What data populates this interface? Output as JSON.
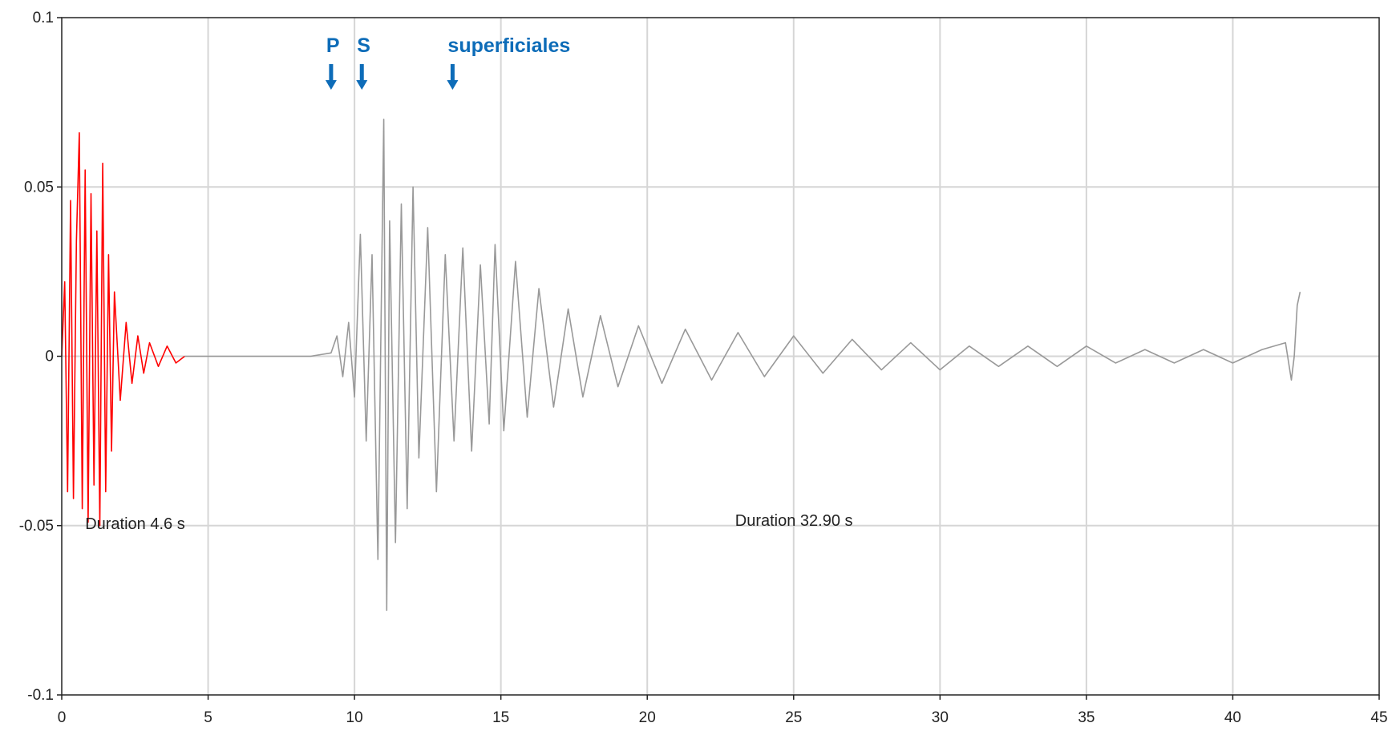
{
  "chart_data": {
    "type": "line",
    "title": "",
    "xlabel": "",
    "ylabel": "",
    "xlim": [
      0,
      45
    ],
    "ylim": [
      -0.1,
      0.1
    ],
    "x_ticks": [
      "0",
      "5",
      "10",
      "15",
      "20",
      "25",
      "30",
      "35",
      "40",
      "45"
    ],
    "y_ticks": [
      "0.1",
      "0.05",
      "0",
      "-0.05",
      "-0.1"
    ],
    "grid": true,
    "series": [
      {
        "color": "#ff0000",
        "x": [
          0.0,
          0.1,
          0.2,
          0.3,
          0.4,
          0.5,
          0.6,
          0.7,
          0.8,
          0.9,
          1.0,
          1.1,
          1.2,
          1.3,
          1.4,
          1.5,
          1.6,
          1.7,
          1.8,
          2.0,
          2.2,
          2.4,
          2.6,
          2.8,
          3.0,
          3.3,
          3.6,
          3.9,
          4.2
        ],
        "y": [
          0.0,
          0.022,
          -0.04,
          0.046,
          -0.042,
          0.034,
          0.066,
          -0.045,
          0.055,
          -0.049,
          0.048,
          -0.038,
          0.037,
          -0.05,
          0.057,
          -0.04,
          0.03,
          -0.028,
          0.019,
          -0.013,
          0.01,
          -0.008,
          0.006,
          -0.005,
          0.004,
          -0.003,
          0.003,
          -0.002,
          0.0
        ]
      },
      {
        "color": "#999999",
        "x": [
          4.2,
          6.8,
          8.5,
          9.2,
          9.4,
          9.6,
          9.8,
          10.0,
          10.2,
          10.4,
          10.6,
          10.8,
          11.0,
          11.1,
          11.2,
          11.4,
          11.6,
          11.8,
          12.0,
          12.2,
          12.5,
          12.8,
          13.1,
          13.4,
          13.7,
          14.0,
          14.3,
          14.6,
          14.8,
          15.1,
          15.5,
          15.9,
          16.3,
          16.8,
          17.3,
          17.8,
          18.4,
          19.0,
          19.7,
          20.5,
          21.3,
          22.2,
          23.1,
          24.0,
          25.0,
          26.0,
          27.0,
          28.0,
          29.0,
          30.0,
          31.0,
          32.0,
          33.0,
          34.0,
          35.0,
          36.0,
          37.0,
          38.0,
          39.0,
          40.0,
          41.0,
          41.8,
          42.0,
          42.1,
          42.2,
          42.3
        ],
        "y": [
          0.0,
          0.0,
          0.0,
          0.001,
          0.006,
          -0.006,
          0.01,
          -0.012,
          0.036,
          -0.025,
          0.03,
          -0.06,
          0.07,
          -0.075,
          0.04,
          -0.055,
          0.045,
          -0.045,
          0.05,
          -0.03,
          0.038,
          -0.04,
          0.03,
          -0.025,
          0.032,
          -0.028,
          0.027,
          -0.02,
          0.033,
          -0.022,
          0.028,
          -0.018,
          0.02,
          -0.015,
          0.014,
          -0.012,
          0.012,
          -0.009,
          0.009,
          -0.008,
          0.008,
          -0.007,
          0.007,
          -0.006,
          0.006,
          -0.005,
          0.005,
          -0.004,
          0.004,
          -0.004,
          0.003,
          -0.003,
          0.003,
          -0.003,
          0.003,
          -0.002,
          0.002,
          -0.002,
          0.002,
          -0.002,
          0.002,
          0.004,
          -0.007,
          0.0,
          0.015,
          0.019
        ]
      }
    ],
    "annotations": [
      {
        "text": "Duration 4.6 s",
        "x": 0.8,
        "y": -0.051
      },
      {
        "text": "Duration 32.90 s",
        "x": 23.0,
        "y": -0.05
      }
    ],
    "markers": [
      {
        "label": "P",
        "x": 9.2,
        "color": "#0d6cb8"
      },
      {
        "label": "S",
        "x": 10.25,
        "color": "#0d6cb8"
      },
      {
        "label": "superficiales",
        "x": 13.35,
        "color": "#0d6cb8"
      }
    ]
  }
}
